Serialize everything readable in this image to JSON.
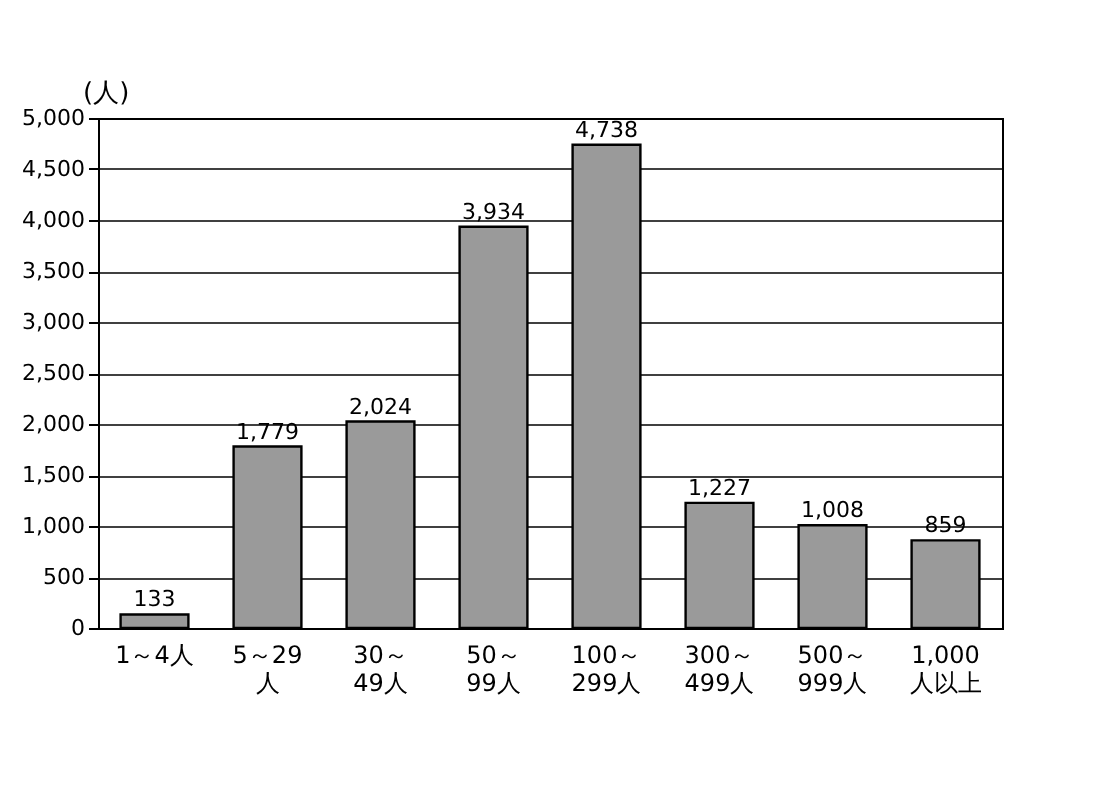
{
  "chart_data": {
    "type": "bar",
    "ylabel": "(人)",
    "categories": [
      "1～4人",
      "5～29\n人",
      "30～\n49人",
      "50～\n99人",
      "100～\n299人",
      "300～\n499人",
      "500～\n999人",
      "1,000\n人以上"
    ],
    "values": [
      133,
      1779,
      2024,
      3934,
      4738,
      1227,
      1008,
      859
    ],
    "value_labels": [
      "133",
      "1,779",
      "2,024",
      "3,934",
      "4,738",
      "1,227",
      "1,008",
      "859"
    ],
    "color": "#9a9a9a",
    "ylim": [
      0,
      5000
    ],
    "yticks": [
      {
        "value": 0,
        "label": "0"
      },
      {
        "value": 500,
        "label": "500"
      },
      {
        "value": 1000,
        "label": "1,000"
      },
      {
        "value": 1500,
        "label": "1,500"
      },
      {
        "value": 2000,
        "label": "2,000"
      },
      {
        "value": 2500,
        "label": "2,500"
      },
      {
        "value": 3000,
        "label": "3,000"
      },
      {
        "value": 3500,
        "label": "3,500"
      },
      {
        "value": 4000,
        "label": "4,000"
      },
      {
        "value": 4500,
        "label": "4,500"
      },
      {
        "value": 5000,
        "label": "5,000"
      }
    ],
    "grid": "y"
  }
}
